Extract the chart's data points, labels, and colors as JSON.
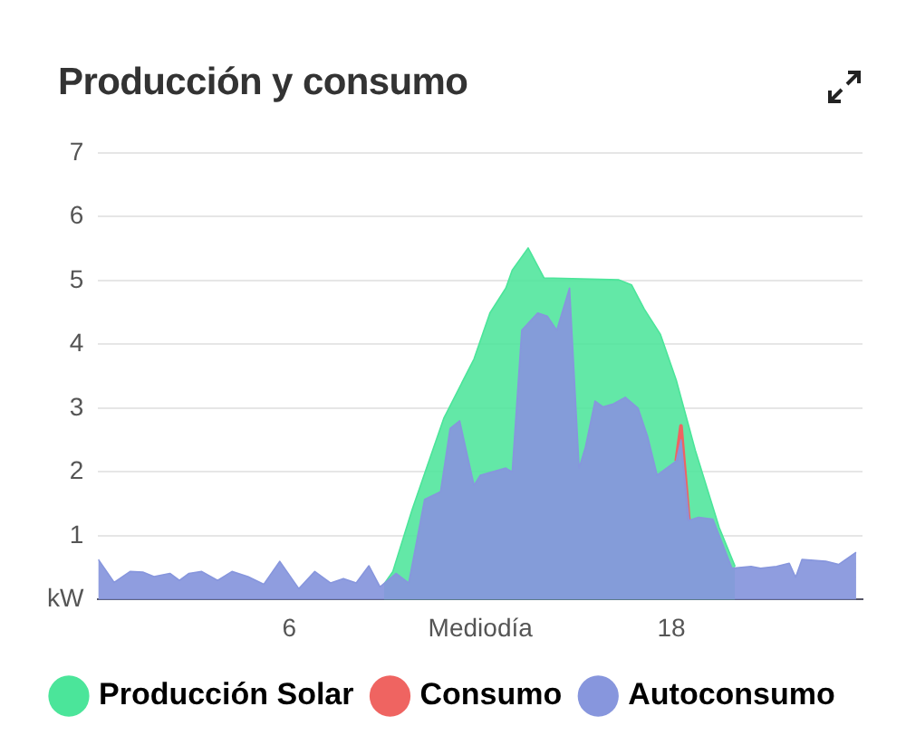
{
  "chart_data": {
    "type": "area",
    "title": "Producción y consumo",
    "xlim": [
      0,
      24
    ],
    "xticks": [
      6,
      {
        "value": 12,
        "label": "Mediodía"
      },
      18
    ],
    "ylim": [
      0,
      7
    ],
    "yticks": [
      {
        "value": 0,
        "label": "kW"
      },
      1,
      2,
      3,
      4,
      5,
      6,
      7
    ],
    "grid": "y",
    "legend": "bottom",
    "marker": "none",
    "series": [
      {
        "name": "Producción Solar",
        "color": "#4be59a",
        "x": [
          8.97,
          9.25,
          9.85,
          10.85,
          11.8,
          12.3,
          12.8,
          13.0,
          13.5,
          14.0,
          16.35,
          16.75,
          17.15,
          17.65,
          18.15,
          18.75,
          19.5,
          20.0
        ],
        "values": [
          0.24,
          0.44,
          1.4,
          2.84,
          3.77,
          4.49,
          4.88,
          5.16,
          5.51,
          5.04,
          5.01,
          4.93,
          4.55,
          4.16,
          3.44,
          2.34,
          1.13,
          0.52
        ]
      },
      {
        "name": "Consumo",
        "type": "line",
        "color": "#ef6461",
        "x": [
          18.15,
          18.3,
          18.55
        ],
        "values": [
          2.17,
          2.72,
          1.24
        ]
      },
      {
        "name": "Autoconsumo",
        "color": "#8796dd",
        "x": [
          0,
          0.5,
          1.0,
          1.4,
          1.75,
          2.25,
          2.55,
          2.85,
          3.25,
          3.75,
          4.2,
          4.7,
          5.2,
          5.7,
          6.3,
          6.8,
          7.3,
          7.7,
          8.1,
          8.5,
          8.85,
          9.35,
          9.75,
          10.25,
          10.75,
          11.05,
          11.35,
          11.8,
          12.0,
          12.8,
          13.0,
          13.3,
          13.8,
          14.1,
          14.4,
          14.8,
          15.1,
          15.3,
          15.6,
          15.85,
          16.15,
          16.55,
          16.95,
          17.25,
          17.55,
          17.85,
          18.15,
          18.3,
          18.55,
          18.85,
          19.3,
          19.9,
          20.5,
          20.8,
          21.3,
          21.7,
          21.9,
          22.1,
          22.85,
          23.25,
          23.8
        ],
        "values": [
          0.63,
          0.27,
          0.44,
          0.43,
          0.36,
          0.41,
          0.3,
          0.41,
          0.44,
          0.3,
          0.44,
          0.36,
          0.24,
          0.6,
          0.17,
          0.44,
          0.26,
          0.33,
          0.26,
          0.53,
          0.2,
          0.41,
          0.26,
          1.57,
          1.69,
          2.68,
          2.8,
          1.79,
          1.95,
          2.06,
          2.0,
          4.22,
          4.49,
          4.44,
          4.22,
          4.88,
          2.06,
          2.39,
          3.11,
          3.02,
          3.06,
          3.17,
          3.0,
          2.56,
          1.95,
          2.06,
          2.17,
          2.5,
          1.24,
          1.29,
          1.26,
          0.49,
          0.52,
          0.49,
          0.52,
          0.57,
          0.35,
          0.63,
          0.6,
          0.55,
          0.74
        ]
      }
    ]
  }
}
